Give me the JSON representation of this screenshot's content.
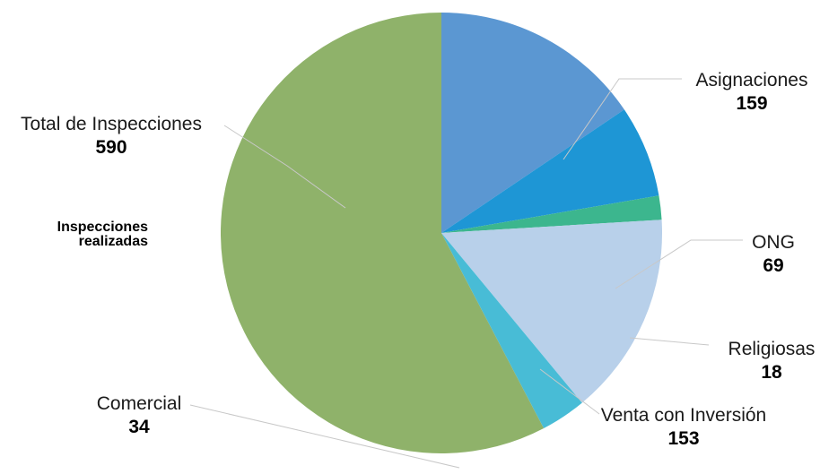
{
  "chart_data": {
    "type": "pie",
    "title": "",
    "side_title": [
      "Inspecciones",
      "realizadas"
    ],
    "total": {
      "label": "Total de Inspecciones",
      "value": 590
    },
    "slices": [
      {
        "name": "Asignaciones",
        "value": 159,
        "color": "#5b97d2"
      },
      {
        "name": "ONG",
        "value": 69,
        "color": "#1e96d5"
      },
      {
        "name": "Religiosas",
        "value": 18,
        "color": "#3cb68e"
      },
      {
        "name": "Venta con Inversión",
        "value": 153,
        "color": "#b8d0ea"
      },
      {
        "name": "Comercial",
        "value": 34,
        "color": "#48bcd6"
      },
      {
        "name": "Total de Inspecciones",
        "value": 590,
        "color": "#8fb26a"
      }
    ],
    "leader_line_color": "#c8c8c8"
  }
}
